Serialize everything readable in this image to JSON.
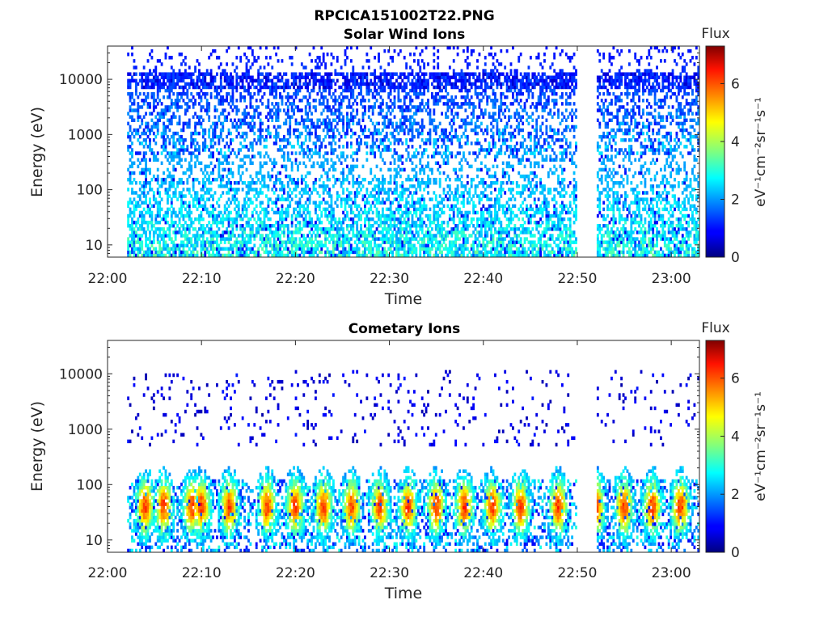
{
  "figure_title": "RPCICA151002T22.PNG",
  "chart_data": [
    {
      "type": "heatmap",
      "title": "Solar Wind Ions",
      "xlabel": "Time",
      "ylabel": "Energy (eV)",
      "y_scale": "log",
      "xlim": [
        "22:00",
        "23:03"
      ],
      "ylim": [
        6,
        40000
      ],
      "x_ticks": [
        "22:00",
        "22:10",
        "22:20",
        "22:30",
        "22:40",
        "22:50",
        "23:00"
      ],
      "y_ticks": [
        "10",
        "100",
        "1000",
        "10000"
      ],
      "data_time_range": [
        "22:02",
        "23:03"
      ],
      "data_gap": [
        "22:50",
        "22:52"
      ],
      "colorbar": {
        "label": "Flux",
        "units": "eV⁻¹cm⁻²sr⁻¹s⁻¹",
        "range": [
          0,
          7.3
        ],
        "ticks": [
          "0",
          "2",
          "4",
          "6"
        ],
        "colormap": "jet"
      },
      "features": [
        {
          "name": "background",
          "energy_ev": [
            100,
            40000
          ],
          "flux_log": [
            1,
            3
          ]
        },
        {
          "name": "dense band",
          "energy_ev": [
            8000,
            12000
          ],
          "flux_log": [
            0.5,
            1.5
          ]
        },
        {
          "name": "low-energy population",
          "energy_ev": [
            6,
            400
          ],
          "flux_log": [
            2,
            3.6
          ]
        }
      ]
    },
    {
      "type": "heatmap",
      "title": "Cometary Ions",
      "xlabel": "Time",
      "ylabel": "Energy (eV)",
      "y_scale": "log",
      "xlim": [
        "22:00",
        "23:03"
      ],
      "ylim": [
        6,
        40000
      ],
      "x_ticks": [
        "22:00",
        "22:10",
        "22:20",
        "22:30",
        "22:40",
        "22:50",
        "23:00"
      ],
      "y_ticks": [
        "10",
        "100",
        "1000",
        "10000"
      ],
      "data_time_range": [
        "22:02",
        "23:03"
      ],
      "data_gap": [
        "22:50",
        "22:52"
      ],
      "colorbar": {
        "label": "Flux",
        "units": "eV⁻¹cm⁻²sr⁻¹s⁻¹",
        "range": [
          0,
          7.3
        ],
        "ticks": [
          "0",
          "2",
          "4",
          "6"
        ],
        "colormap": "jet"
      },
      "burst_times": [
        "22:04",
        "22:06",
        "22:09",
        "22:10",
        "22:13",
        "22:17",
        "22:20",
        "22:23",
        "22:26",
        "22:29",
        "22:32",
        "22:35",
        "22:38",
        "22:41",
        "22:44",
        "22:48",
        "22:52",
        "22:55",
        "22:58",
        "23:01"
      ],
      "burst_energy_ev": [
        6,
        500
      ],
      "burst_peak_energy_ev": 40,
      "burst_peak_flux_log": 6
    }
  ]
}
